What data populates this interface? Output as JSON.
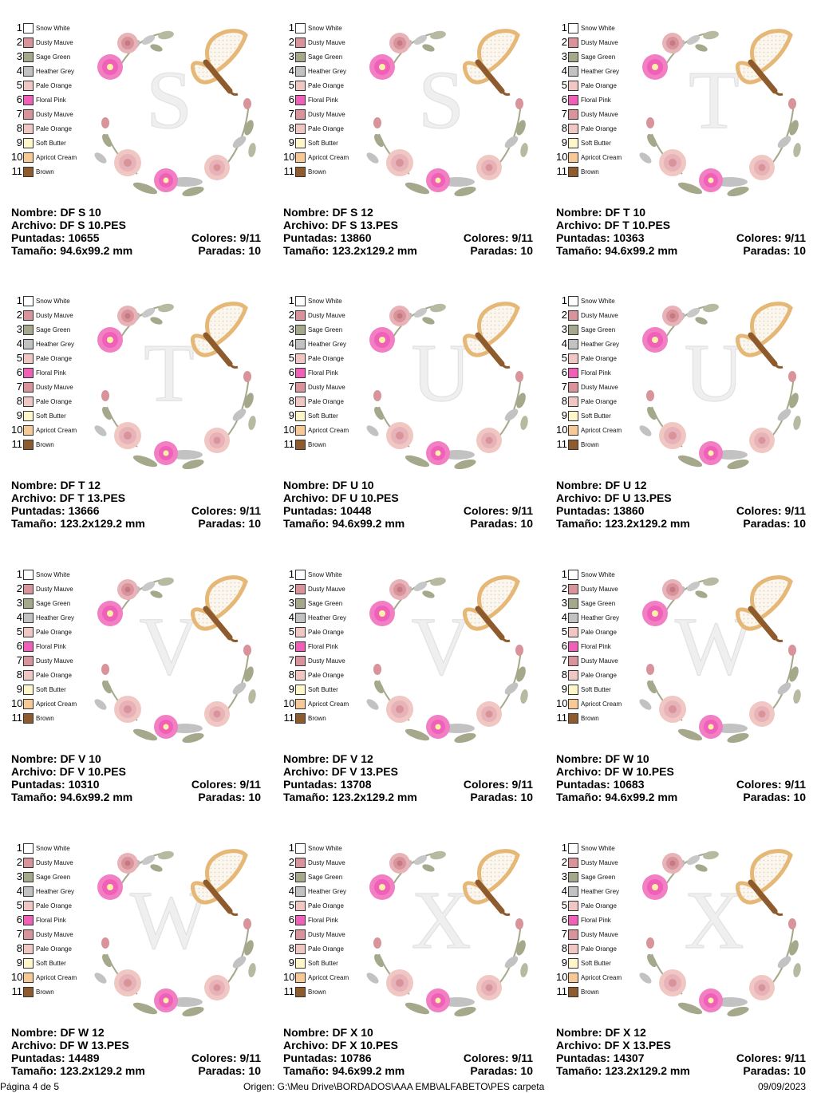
{
  "palette": [
    {
      "n": "1",
      "name": "Snow White",
      "color": "#ffffff"
    },
    {
      "n": "2",
      "name": "Dusty Mauve",
      "color": "#d9939b"
    },
    {
      "n": "3",
      "name": "Sage Green",
      "color": "#a6a88c"
    },
    {
      "n": "4",
      "name": "Heather Grey",
      "color": "#c2c2c2"
    },
    {
      "n": "5",
      "name": "Pale Orange",
      "color": "#f0c7c2"
    },
    {
      "n": "6",
      "name": "Floral Pink",
      "color": "#f060b8"
    },
    {
      "n": "7",
      "name": "Dusty Mauve",
      "color": "#d9939b"
    },
    {
      "n": "8",
      "name": "Pale Orange",
      "color": "#f0c7c2"
    },
    {
      "n": "9",
      "name": "Soft Butter",
      "color": "#fff7c9"
    },
    {
      "n": "10",
      "name": "Apricot Cream",
      "color": "#f7c996"
    },
    {
      "n": "11",
      "name": "Brown",
      "color": "#8e5b2e"
    }
  ],
  "designs": [
    {
      "letter": "S",
      "nombre": "Nombre: DF S 10",
      "archivo": "Archivo: DF S 10.PES",
      "puntadas": "Puntadas: 10655",
      "colores": "Colores: 9/11",
      "tamano": "Tamaño: 94.6x99.2 mm",
      "paradas": "Paradas: 10"
    },
    {
      "letter": "S",
      "nombre": "Nombre: DF S 12",
      "archivo": "Archivo: DF S 13.PES",
      "puntadas": "Puntadas: 13860",
      "colores": "Colores: 9/11",
      "tamano": "Tamaño: 123.2x129.2 mm",
      "paradas": "Paradas: 10"
    },
    {
      "letter": "T",
      "nombre": "Nombre: DF T 10",
      "archivo": "Archivo: DF T 10.PES",
      "puntadas": "Puntadas: 10363",
      "colores": "Colores: 9/11",
      "tamano": "Tamaño: 94.6x99.2 mm",
      "paradas": "Paradas: 10"
    },
    {
      "letter": "T",
      "nombre": "Nombre: DF T 12",
      "archivo": "Archivo: DF T 13.PES",
      "puntadas": "Puntadas: 13666",
      "colores": "Colores: 9/11",
      "tamano": "Tamaño: 123.2x129.2 mm",
      "paradas": "Paradas: 10"
    },
    {
      "letter": "U",
      "nombre": "Nombre: DF U 10",
      "archivo": "Archivo: DF U 10.PES",
      "puntadas": "Puntadas: 10448",
      "colores": "Colores: 9/11",
      "tamano": "Tamaño: 94.6x99.2 mm",
      "paradas": "Paradas: 10"
    },
    {
      "letter": "U",
      "nombre": "Nombre: DF U 12",
      "archivo": "Archivo: DF U 13.PES",
      "puntadas": "Puntadas: 13860",
      "colores": "Colores: 9/11",
      "tamano": "Tamaño: 123.2x129.2 mm",
      "paradas": "Paradas: 10"
    },
    {
      "letter": "V",
      "nombre": "Nombre: DF V 10",
      "archivo": "Archivo: DF V 10.PES",
      "puntadas": "Puntadas: 10310",
      "colores": "Colores: 9/11",
      "tamano": "Tamaño: 94.6x99.2 mm",
      "paradas": "Paradas: 10"
    },
    {
      "letter": "V",
      "nombre": "Nombre: DF V 12",
      "archivo": "Archivo: DF V 13.PES",
      "puntadas": "Puntadas: 13708",
      "colores": "Colores: 9/11",
      "tamano": "Tamaño: 123.2x129.2 mm",
      "paradas": "Paradas: 10"
    },
    {
      "letter": "W",
      "nombre": "Nombre: DF W 10",
      "archivo": "Archivo: DF W 10.PES",
      "puntadas": "Puntadas: 10683",
      "colores": "Colores: 9/11",
      "tamano": "Tamaño: 94.6x99.2 mm",
      "paradas": "Paradas: 10"
    },
    {
      "letter": "W",
      "nombre": "Nombre: DF W 12",
      "archivo": "Archivo: DF W 13.PES",
      "puntadas": "Puntadas: 14489",
      "colores": "Colores: 9/11",
      "tamano": "Tamaño: 123.2x129.2 mm",
      "paradas": "Paradas: 10"
    },
    {
      "letter": "X",
      "nombre": "Nombre: DF X 10",
      "archivo": "Archivo: DF X 10.PES",
      "puntadas": "Puntadas: 10786",
      "colores": "Colores: 9/11",
      "tamano": "Tamaño: 94.6x99.2 mm",
      "paradas": "Paradas: 10"
    },
    {
      "letter": "X",
      "nombre": "Nombre: DF X 12",
      "archivo": "Archivo: DF X 13.PES",
      "puntadas": "Puntadas: 14307",
      "colores": "Colores: 9/11",
      "tamano": "Tamaño: 123.2x129.2 mm",
      "paradas": "Paradas: 10"
    }
  ],
  "footer": {
    "page": "Página 4 de 5",
    "origin": "Origen: G:\\Meu Drive\\BORDADOS\\AAA EMB\\ALFABETO\\PES carpeta",
    "date": "09/09/2023"
  }
}
